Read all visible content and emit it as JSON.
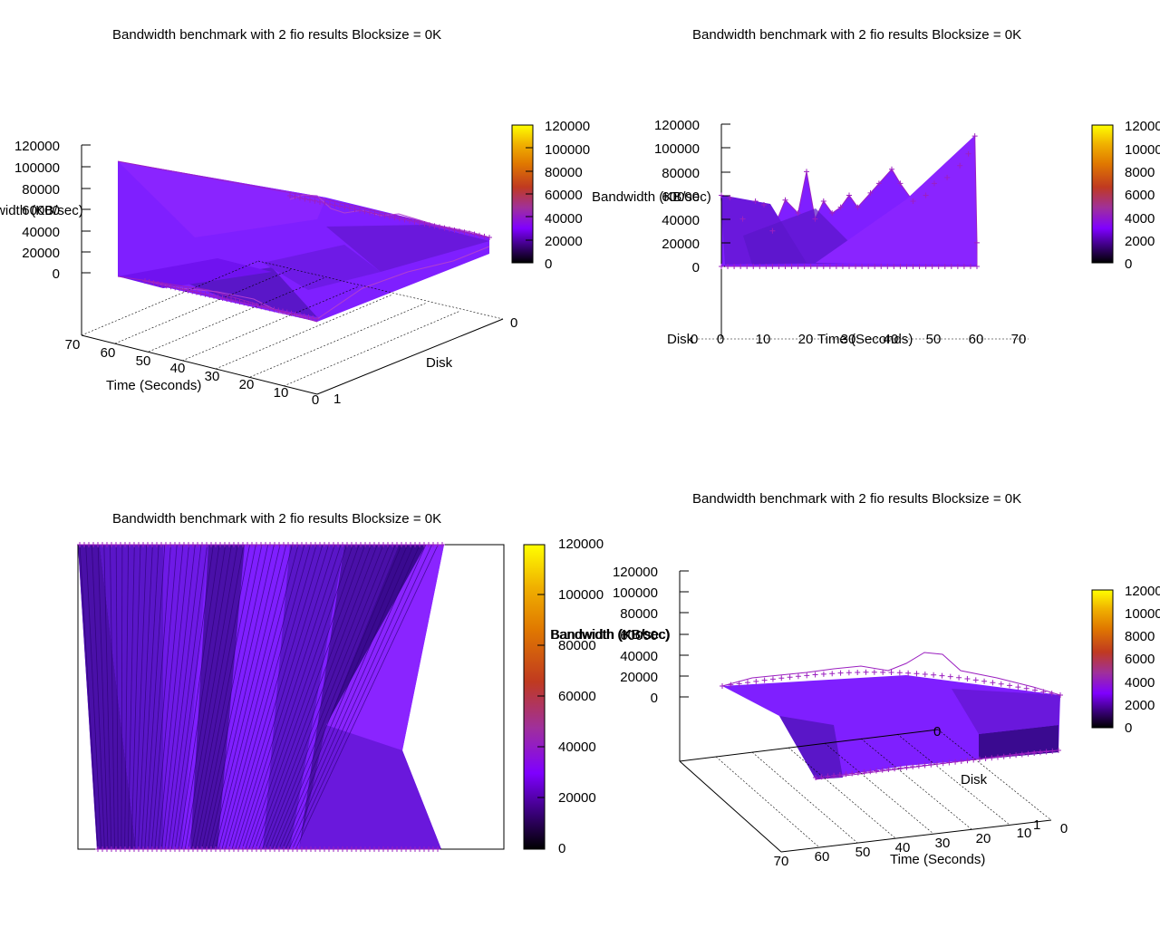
{
  "chart_data": [
    {
      "type": "surface3d",
      "view": "perspective",
      "title": "Bandwidth benchmark with 2 fio results  Blocksize = 0K",
      "xlabel": "Time (Seconds)",
      "ylabel": "Disk",
      "zlabel": "Bandwidth (KB/sec)",
      "x_ticks": [
        "70",
        "60",
        "50",
        "40",
        "30",
        "20",
        "10",
        "0"
      ],
      "y_ticks": [
        "0",
        "1"
      ],
      "z_ticks": [
        "120000",
        "100000",
        "80000",
        "60000",
        "40000",
        "20000",
        "0"
      ],
      "colorbar_ticks": [
        "120000",
        "100000",
        "80000",
        "60000",
        "40000",
        "20000",
        "0"
      ],
      "xlim": [
        0,
        70
      ],
      "ylim": [
        0,
        1
      ],
      "zlim": [
        0,
        120000
      ],
      "series": [
        {
          "x": [
            0,
            2,
            5,
            10,
            15,
            20,
            25,
            30,
            35,
            40,
            45,
            50,
            55,
            60
          ],
          "values": [
            105000,
            36000,
            32000,
            34000,
            30000,
            33000,
            31000,
            35000,
            32000,
            34000,
            31000,
            33000,
            30000,
            28000
          ]
        }
      ]
    },
    {
      "type": "surface3d",
      "view": "side (time axis)",
      "title": "Bandwidth benchmark with 2 fio results  Blocksize = 0K",
      "xlabel": "Time (Seconds)",
      "ylabel": "Disk",
      "zlabel": "Bandwidth (KB/sec)",
      "x_ticks": [
        "0",
        "10",
        "20",
        "30",
        "40",
        "50",
        "60",
        "70"
      ],
      "y_ticks": [
        "0"
      ],
      "z_ticks": [
        "120000",
        "100000",
        "80000",
        "60000",
        "40000",
        "20000",
        "0"
      ],
      "colorbar_ticks": [
        "12000",
        "10000",
        "8000",
        "6000",
        "4000",
        "2000",
        "0"
      ],
      "xlim": [
        0,
        70
      ],
      "zlim": [
        0,
        120000
      ],
      "series": [
        {
          "x": [
            0,
            2,
            5,
            8,
            10,
            12,
            15,
            18,
            20,
            22,
            24,
            26,
            28,
            30,
            32,
            35,
            37,
            40,
            42,
            45,
            48,
            50,
            53,
            56,
            58,
            59.5,
            60
          ],
          "values": [
            60000,
            58000,
            40000,
            55000,
            52000,
            30000,
            56000,
            45000,
            80000,
            40000,
            55000,
            45000,
            50000,
            60000,
            50000,
            62000,
            70000,
            82000,
            70000,
            55000,
            60000,
            70000,
            75000,
            85000,
            95000,
            110000,
            20000
          ]
        }
      ]
    },
    {
      "type": "heatmap",
      "view": "top (map)",
      "title": "Bandwidth benchmark with 2 fio results  Blocksize = 0K",
      "zlabel": "Bandwidth (KB/sec)",
      "colorbar_ticks": [
        "120000",
        "100000",
        "80000",
        "60000",
        "40000",
        "20000",
        "0"
      ],
      "zlim": [
        0,
        120000
      ]
    },
    {
      "type": "surface3d",
      "view": "perspective (rotated)",
      "title": "Bandwidth benchmark with 2 fio results  Blocksize = 0K",
      "xlabel": "Time (Seconds)",
      "ylabel": "Disk",
      "zlabel": "Bandwidth (KB/sec)",
      "x_ticks": [
        "70",
        "60",
        "50",
        "40",
        "30",
        "20",
        "10",
        "0"
      ],
      "y_ticks": [
        "1",
        "0"
      ],
      "z_ticks": [
        "120000",
        "100000",
        "80000",
        "60000",
        "40000",
        "20000",
        "0"
      ],
      "colorbar_ticks": [
        "12000",
        "10000",
        "8000",
        "6000",
        "4000",
        "2000",
        "0"
      ],
      "xlim": [
        0,
        70
      ],
      "ylim": [
        0,
        1
      ],
      "zlim": [
        0,
        120000
      ],
      "series": [
        {
          "x": [
            0,
            5,
            10,
            15,
            20,
            25,
            30,
            35,
            40,
            45,
            50,
            55,
            60,
            65,
            70
          ],
          "values": [
            12000,
            14000,
            15000,
            18000,
            19000,
            21000,
            24000,
            26000,
            30000,
            33000,
            31000,
            28000,
            30000,
            27000,
            25000
          ]
        }
      ]
    }
  ],
  "colors": {
    "surface": "#7f1fff",
    "surface_dark": "#5a16c8",
    "surface_mid": "#6e1ae6",
    "points": "#9b20c0",
    "gradient": [
      "#000000",
      "#3a007a",
      "#7f00ff",
      "#a0309a",
      "#c03a20",
      "#e07800",
      "#f0b000",
      "#ffff00"
    ]
  }
}
